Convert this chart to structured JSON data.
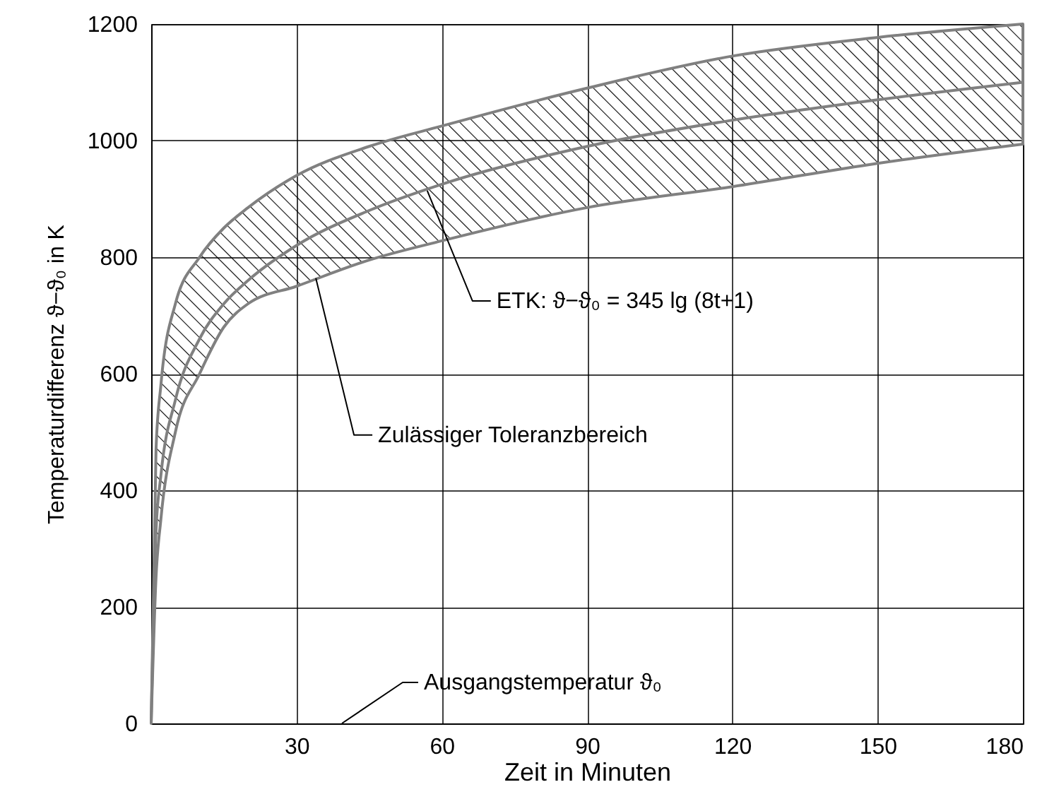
{
  "chart_data": {
    "type": "line",
    "xlabel": "Zeit in Minuten",
    "ylabel": "Temperaturdifferenz ϑ−ϑ₀ in K",
    "x": [
      0,
      1,
      2,
      5,
      10,
      15,
      20,
      30,
      45,
      60,
      90,
      120,
      150,
      180
    ],
    "series": [
      {
        "color": "#808080",
        "values": [
          0,
          330,
          425,
          555,
          660,
          720,
          760,
          820,
          880,
          925,
          990,
          1035,
          1070,
          1100
        ],
        "lower": [
          0,
          250,
          350,
          500,
          600,
          680,
          720,
          750,
          795,
          828,
          885,
          921,
          961,
          994
        ],
        "upper": [
          0,
          470,
          580,
          720,
          800,
          850,
          885,
          940,
          990,
          1025,
          1090,
          1145,
          1177,
          1200
        ]
      }
    ],
    "xlim": [
      0,
      180
    ],
    "xticks": [
      30,
      60,
      90,
      120,
      150,
      180
    ],
    "ylim": [
      0,
      1200
    ],
    "yticks": [
      0,
      200,
      400,
      600,
      800,
      1000,
      1200
    ],
    "grid": true,
    "marker": "none",
    "line_style": "solid",
    "annotations": [
      {
        "text": "ETK: ϑ−ϑ₀ = 345 lg (8t+1)",
        "x": 57,
        "y": 914
      },
      {
        "text": "Zulässiger Toleranzbereich",
        "x": 34,
        "y": 764
      },
      "Ausgangstemperatur ϑ₀"
    ]
  }
}
